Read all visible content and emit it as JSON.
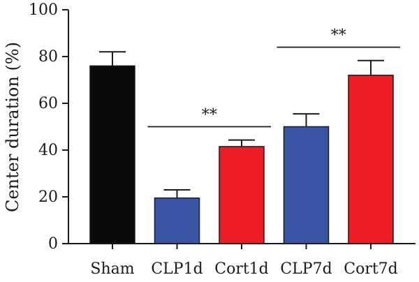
{
  "chart_data": {
    "type": "bar",
    "title": "",
    "xlabel": "",
    "ylabel": "Center duration (%)",
    "ylim": [
      0,
      100
    ],
    "yticks": [
      0,
      20,
      40,
      60,
      80,
      100
    ],
    "grid": false,
    "legend": "none",
    "categories": [
      "Sham",
      "CLP1d",
      "Cort1d",
      "CLP7d",
      "Cort7d"
    ],
    "values": [
      76,
      19.5,
      41.5,
      50,
      72
    ],
    "errors": [
      6,
      3.5,
      2.8,
      5.5,
      6.3
    ],
    "colors": [
      "#0a0a0a",
      "#3a55a4",
      "#ee1c25",
      "#3a55a4",
      "#ee1c25"
    ],
    "significance": [
      {
        "from": 1,
        "to": 2,
        "y": 50,
        "label": "**"
      },
      {
        "from": 3,
        "to": 4,
        "y": 84,
        "label": "**"
      }
    ]
  }
}
